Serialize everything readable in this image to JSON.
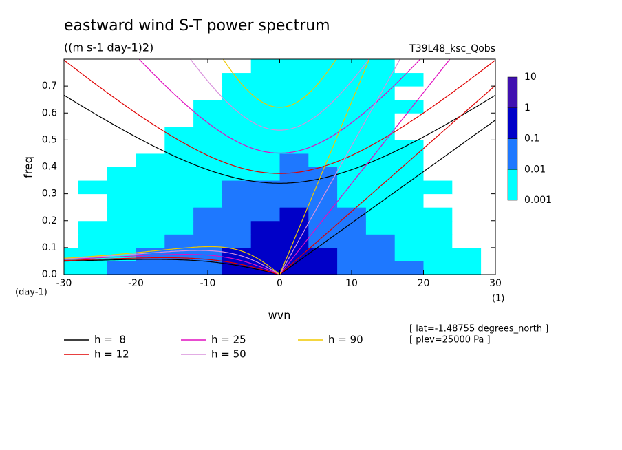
{
  "chart_data": {
    "type": "contour",
    "title": "eastward wind S-T power spectrum",
    "subtitle": "((m s-1 day-1)2)",
    "run_label": "T39L48_ksc_Qobs",
    "x_label": "wvn",
    "y_label": "freq",
    "x_unit": "(1)",
    "y_unit": "(day-1)",
    "notes": [
      "[ lat=-1.48755 degrees_north ]",
      "[ plev=25000 Pa ]"
    ],
    "xlim": [
      -30,
      30
    ],
    "ylim": [
      0,
      0.8
    ],
    "xticks": [
      -30,
      -20,
      -10,
      0,
      10,
      20,
      30
    ],
    "yticks": [
      {
        "value": 0,
        "label": "0.0"
      },
      0.1,
      0.2,
      0.3,
      0.4,
      0.5,
      0.6,
      0.7
    ],
    "levels": [
      {
        "value": 0.001,
        "label": "0.001"
      },
      0.01,
      0.1,
      1,
      10
    ],
    "level_colors": [
      "#00ffff",
      "#1e78ff",
      "#0000c8",
      "#4010b0"
    ],
    "field": {
      "x": [
        -30,
        -26,
        -22,
        -18,
        -14,
        -10,
        -6,
        -2,
        2,
        6,
        10,
        14,
        18,
        22,
        26,
        30
      ],
      "y": [
        0.025,
        0.075,
        0.125,
        0.175,
        0.225,
        0.275,
        0.325,
        0.375,
        0.425,
        0.475,
        0.525,
        0.575,
        0.625,
        0.675,
        0.725,
        0.775
      ],
      "z": [
        [
          0.003,
          0.003,
          0.03,
          0.03,
          0.03,
          0.03,
          0.3,
          0.3,
          0.3,
          0.3,
          0.03,
          0.03,
          0.03,
          0.003,
          0.003,
          0
        ],
        [
          0.003,
          0.003,
          0.003,
          0.03,
          0.03,
          0.03,
          0.3,
          0.3,
          0.3,
          0.3,
          0.03,
          0.03,
          0.003,
          0.003,
          0.003,
          0
        ],
        [
          0,
          0.003,
          0.003,
          0.003,
          0.03,
          0.03,
          0.03,
          0.3,
          0.3,
          0.03,
          0.03,
          0.03,
          0.003,
          0.003,
          0,
          0
        ],
        [
          0,
          0.003,
          0.003,
          0.003,
          0.003,
          0.03,
          0.03,
          0.3,
          0.3,
          0.03,
          0.03,
          0.003,
          0.003,
          0.003,
          0,
          0
        ],
        [
          0,
          0,
          0.003,
          0.003,
          0.003,
          0.03,
          0.03,
          0.03,
          0.3,
          0.03,
          0.03,
          0.003,
          0.003,
          0.003,
          0,
          0
        ],
        [
          0,
          0,
          0.003,
          0.003,
          0.003,
          0.003,
          0.03,
          0.03,
          0.03,
          0.03,
          0.003,
          0.003,
          0.003,
          0,
          0,
          0
        ],
        [
          0,
          0.003,
          0.003,
          0.003,
          0.003,
          0.003,
          0.03,
          0.03,
          0.03,
          0.03,
          0.003,
          0.003,
          0.003,
          0.003,
          0,
          0
        ],
        [
          0,
          0,
          0.003,
          0.003,
          0.003,
          0.003,
          0.003,
          0.003,
          0.03,
          0.03,
          0.003,
          0.003,
          0.003,
          0,
          0,
          0
        ],
        [
          0,
          0,
          0,
          0.003,
          0.003,
          0.003,
          0.003,
          0.003,
          0.03,
          0.003,
          0.003,
          0.003,
          0.003,
          0,
          0,
          0
        ],
        [
          0,
          0,
          0,
          0,
          0.003,
          0.003,
          0.003,
          0.003,
          0.003,
          0.003,
          0.003,
          0.003,
          0.003,
          0,
          0,
          0
        ],
        [
          0,
          0,
          0,
          0,
          0.003,
          0.003,
          0.003,
          0.003,
          0.003,
          0.003,
          0.003,
          0.003,
          0,
          0,
          0,
          0
        ],
        [
          0,
          0,
          0,
          0,
          0,
          0.003,
          0.003,
          0.003,
          0.003,
          0.003,
          0.003,
          0.003,
          0,
          0,
          0,
          0
        ],
        [
          0,
          0,
          0,
          0,
          0,
          0.003,
          0.003,
          0.003,
          0.003,
          0.003,
          0.003,
          0.003,
          0.003,
          0,
          0,
          0
        ],
        [
          0,
          0,
          0,
          0,
          0,
          0,
          0.003,
          0.003,
          0.003,
          0.003,
          0.003,
          0.003,
          0,
          0,
          0,
          0
        ],
        [
          0,
          0,
          0,
          0,
          0,
          0,
          0.003,
          0.003,
          0.003,
          0.003,
          0.003,
          0.003,
          0.003,
          0,
          0,
          0
        ],
        [
          0,
          0,
          0,
          0,
          0,
          0,
          0,
          0.003,
          0.003,
          0.003,
          0.003,
          0.003,
          0,
          0,
          0,
          0
        ]
      ]
    },
    "series": [
      {
        "name": "h =  8",
        "h": 8,
        "color": "#000000"
      },
      {
        "name": "h = 12",
        "h": 12,
        "color": "#e00000"
      },
      {
        "name": "h = 25",
        "h": 25,
        "color": "#e010c0"
      },
      {
        "name": "h = 50",
        "h": 50,
        "color": "#d890dc"
      },
      {
        "name": "h = 90",
        "h": 90,
        "color": "#f0c800"
      }
    ]
  }
}
